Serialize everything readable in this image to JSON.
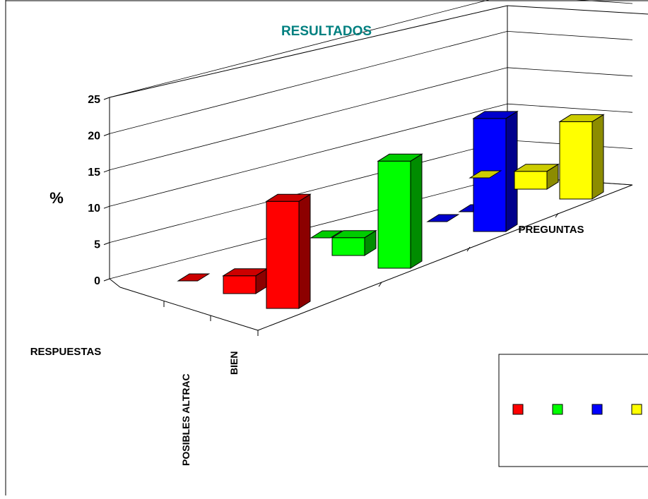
{
  "chart_data": {
    "type": "bar",
    "subtype": "3d-column",
    "title": "RESULTADOS",
    "ylabel": "%",
    "xlabel": "PREGUNTAS",
    "depth_label": "RESPUESTAS",
    "y_ticks": [
      "0",
      "5",
      "10",
      "15",
      "20",
      "25"
    ],
    "ylim": [
      0,
      25
    ],
    "depth_categories": [
      "POSIBLES ALTRAC",
      "BIEN"
    ],
    "grid": true,
    "legend_position": "right",
    "groups": [
      {
        "color": "#ff0000",
        "values": [
          0,
          3,
          18
        ]
      },
      {
        "color": "#00ff00",
        "values": [
          0,
          3,
          18
        ]
      },
      {
        "color": "#0000ff",
        "values": [
          0,
          0,
          19
        ]
      },
      {
        "color": "#ffff00",
        "values": [
          0,
          3,
          13
        ]
      }
    ]
  },
  "legend": {
    "items": [
      {
        "color": "#ff0000",
        "label": ""
      },
      {
        "color": "#00ff00",
        "label": ""
      },
      {
        "color": "#0000ff",
        "label": ""
      },
      {
        "color": "#ffff00",
        "label": ""
      }
    ]
  },
  "colors": {
    "title": "#008080",
    "axis_text": "#000000",
    "gridline": "#000000"
  }
}
